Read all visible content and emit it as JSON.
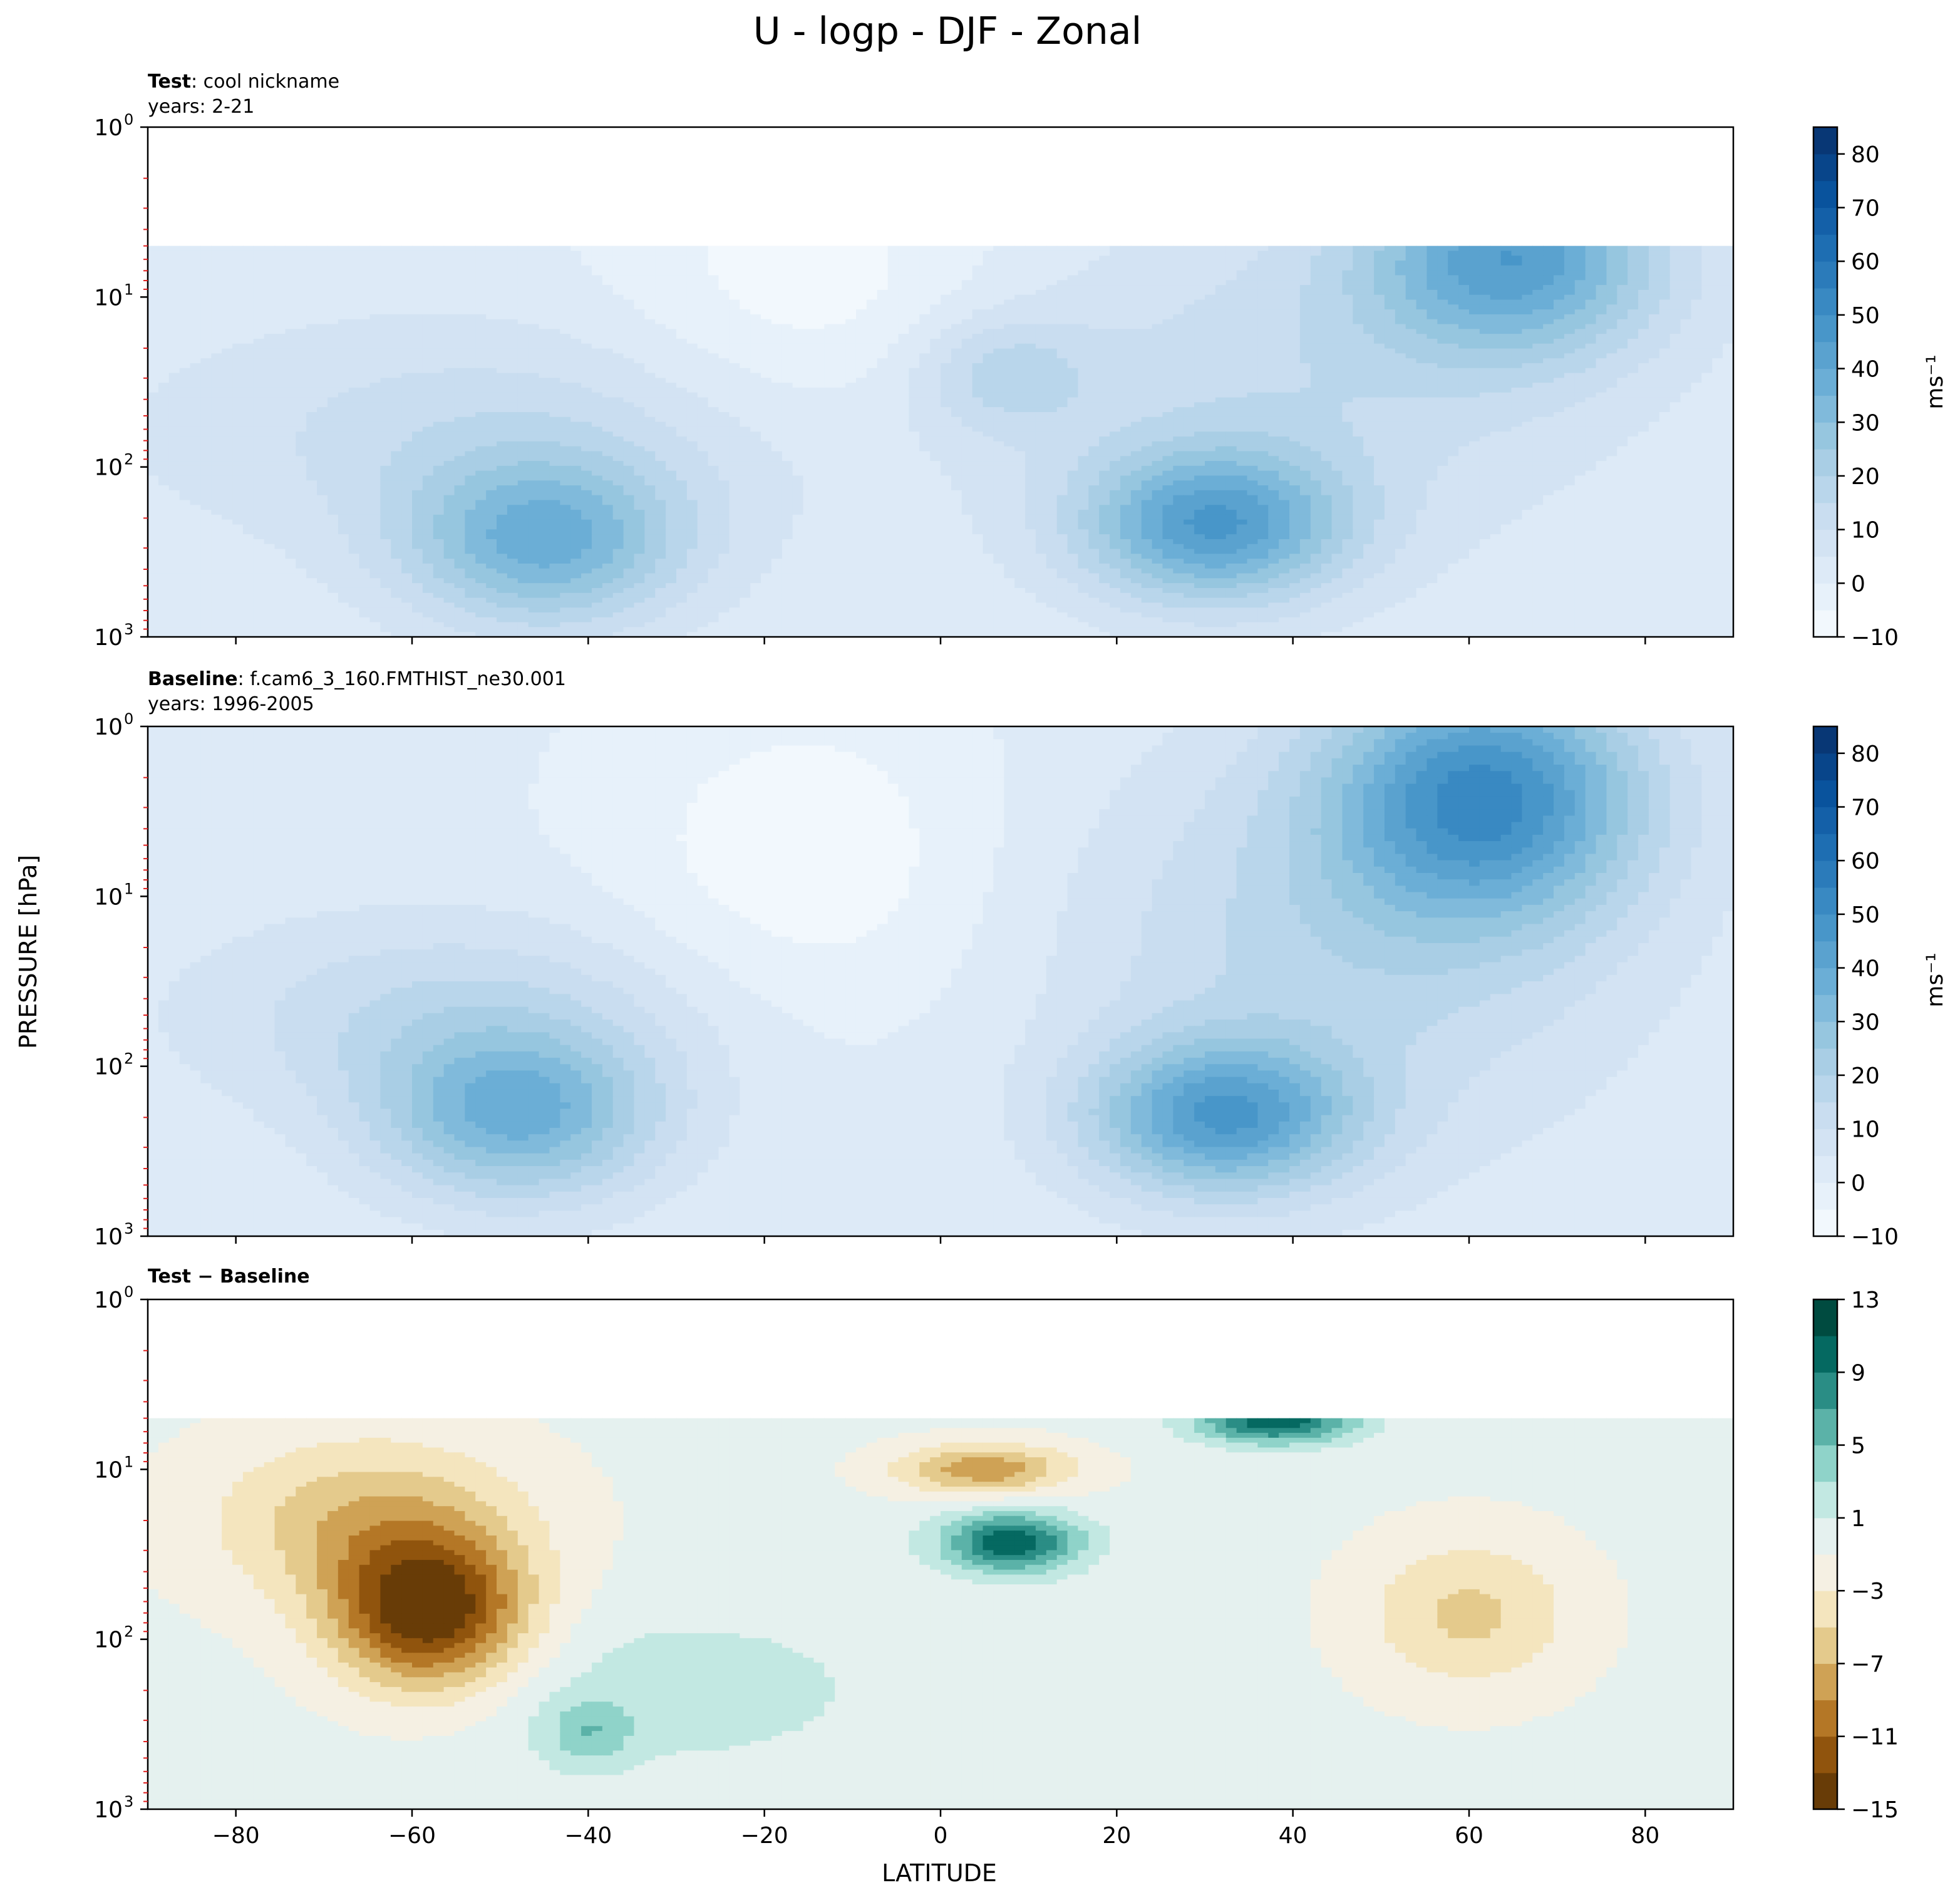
{
  "figure_title": "U - logp - DJF - Zonal",
  "y_axis_label": "PRESSURE [hPa]",
  "x_axis_label": "LATITUDE",
  "colorbar_unit": "ms⁻¹",
  "chart_data": [
    {
      "type": "contour",
      "panel": "test",
      "title_bold": "Test",
      "title_rest": ": cool nickname",
      "subtitle": "years: 2-21",
      "variable": "U",
      "season": "DJF",
      "x": {
        "label": "LATITUDE",
        "range": [
          -90,
          90
        ],
        "ticks": [
          -80,
          -60,
          -40,
          -20,
          0,
          20,
          40,
          60,
          80
        ]
      },
      "y": {
        "label": "PRESSURE [hPa]",
        "scale": "log",
        "inverted": true,
        "range": [
          1,
          1000
        ],
        "ticks": [
          1,
          10,
          100,
          1000
        ]
      },
      "data_top_hPa": 5,
      "levels": [
        -10,
        -5,
        0,
        5,
        10,
        15,
        20,
        25,
        30,
        35,
        40,
        45,
        50,
        55,
        60,
        65,
        70,
        75,
        80,
        85
      ],
      "colorbar": {
        "cmap": "Blues",
        "ticks": [
          -10,
          0,
          10,
          20,
          30,
          40,
          50,
          60,
          70,
          80
        ],
        "label": "ms⁻¹"
      },
      "features": [
        {
          "kind": "jet max",
          "lat": -45,
          "p_hPa": 250,
          "value": 37
        },
        {
          "kind": "jet max",
          "lat": 31,
          "p_hPa": 200,
          "value": 42
        },
        {
          "kind": "strat jet",
          "lat": 65,
          "p_hPa": 5,
          "value": 42
        },
        {
          "kind": "local max",
          "lat": 7,
          "p_hPa": 30,
          "value": 17
        }
      ]
    },
    {
      "type": "contour",
      "panel": "baseline",
      "title_bold": "Baseline",
      "title_rest": ": f.cam6_3_160.FMTHIST_ne30.001",
      "subtitle": "years: 1996-2005",
      "variable": "U",
      "season": "DJF",
      "x": {
        "label": "LATITUDE",
        "range": [
          -90,
          90
        ],
        "ticks": [
          -80,
          -60,
          -40,
          -20,
          0,
          20,
          40,
          60,
          80
        ]
      },
      "y": {
        "label": "PRESSURE [hPa]",
        "scale": "log",
        "inverted": true,
        "range": [
          1,
          1000
        ],
        "ticks": [
          1,
          10,
          100,
          1000
        ]
      },
      "data_top_hPa": 1,
      "levels": [
        -10,
        -5,
        0,
        5,
        10,
        15,
        20,
        25,
        30,
        35,
        40,
        45,
        50,
        55,
        60,
        65,
        70,
        75,
        80,
        85
      ],
      "colorbar": {
        "cmap": "Blues",
        "ticks": [
          -10,
          0,
          10,
          20,
          30,
          40,
          50,
          60,
          70,
          80
        ],
        "label": "ms⁻¹"
      },
      "features": [
        {
          "kind": "jet max",
          "lat": -48,
          "p_hPa": 200,
          "value": 37
        },
        {
          "kind": "jet max",
          "lat": 32,
          "p_hPa": 200,
          "value": 42
        },
        {
          "kind": "strat jet",
          "lat": 62,
          "p_hPa": 3,
          "value": 47
        }
      ]
    },
    {
      "type": "contour",
      "panel": "difference",
      "title_bold": "Test − Baseline",
      "variable": "U",
      "season": "DJF",
      "x": {
        "label": "LATITUDE",
        "range": [
          -90,
          90
        ],
        "ticks": [
          -80,
          -60,
          -40,
          -20,
          0,
          20,
          40,
          60,
          80
        ]
      },
      "y": {
        "label": "PRESSURE [hPa]",
        "scale": "log",
        "inverted": true,
        "range": [
          1,
          1000
        ],
        "ticks": [
          1,
          10,
          100,
          1000
        ]
      },
      "data_top_hPa": 5,
      "levels": [
        -15,
        -13,
        -11,
        -9,
        -7,
        -5,
        -3,
        -1,
        1,
        3,
        5,
        7,
        9,
        11,
        13
      ],
      "colorbar": {
        "cmap": "BrBG",
        "ticks": [
          -15,
          -11,
          -7,
          -3,
          1,
          5,
          9,
          13
        ]
      },
      "features": [
        {
          "kind": "min",
          "lat": -58,
          "p_hPa": 70,
          "value": -14
        },
        {
          "kind": "min",
          "lat": 5,
          "p_hPa": 10,
          "value": -8
        },
        {
          "kind": "min",
          "lat": 60,
          "p_hPa": 60,
          "value": -5
        },
        {
          "kind": "max",
          "lat": 8,
          "p_hPa": 27,
          "value": 11
        },
        {
          "kind": "max",
          "lat": 38,
          "p_hPa": 5,
          "value": 11
        },
        {
          "kind": "max",
          "lat": -40,
          "p_hPa": 350,
          "value": 4
        }
      ]
    }
  ]
}
